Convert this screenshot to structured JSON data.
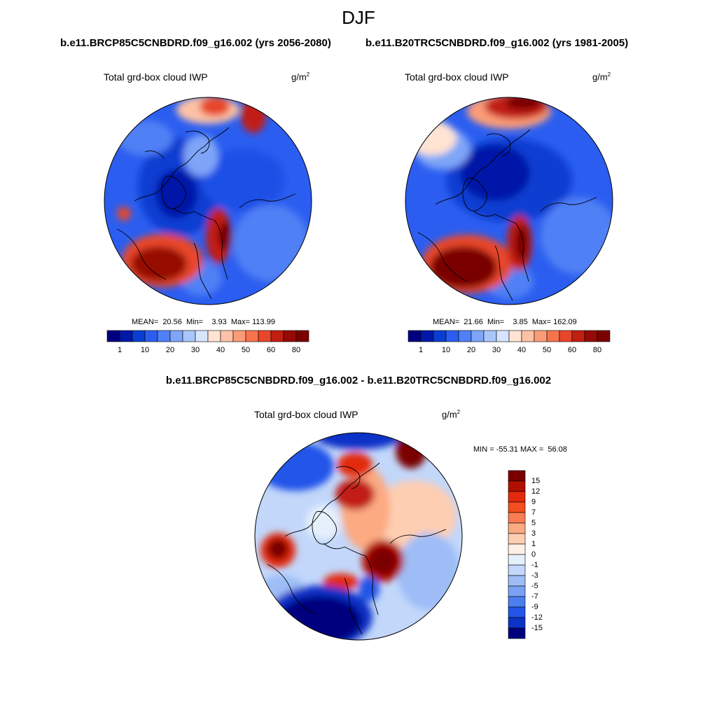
{
  "season": "DJF",
  "top_left": {
    "case": "b.e11.BRCP85C5CNBDRD.f09_g16.002 (yrs 2056-2080)",
    "variable": "Total grd-box cloud IWP",
    "units_base": "g/m",
    "units_exp": "2",
    "stats": "MEAN=  20.56  Min=    3.93  Max= 113.99"
  },
  "top_right": {
    "case": "b.e11.B20TRC5CNBDRD.f09_g16.002 (yrs 1981-2005)",
    "variable": "Total grd-box cloud IWP",
    "units_base": "g/m",
    "units_exp": "2",
    "stats": "MEAN=  21.66  Min=    3.85  Max= 162.09"
  },
  "bottom": {
    "case": "b.e11.BRCP85C5CNBDRD.f09_g16.002 - b.e11.B20TRC5CNBDRD.f09_g16.002",
    "variable": "Total grd-box cloud IWP",
    "units_base": "g/m",
    "units_exp": "2",
    "stats": "MIN = -55.31 MAX =  56.08"
  },
  "abs_colorbar": {
    "colors": [
      "#00007f",
      "#0019a8",
      "#0a3ed1",
      "#2b5ef0",
      "#4f80f5",
      "#7ea5f8",
      "#a9c6fb",
      "#d6e5fd",
      "#ffe3d3",
      "#fdc2a5",
      "#fb9c78",
      "#f7734c",
      "#e8462b",
      "#c11f12",
      "#960a06",
      "#7a0000"
    ],
    "labels": [
      "1",
      "10",
      "20",
      "30",
      "40",
      "50",
      "60",
      "80"
    ]
  },
  "diff_colorbar": {
    "colors": [
      "#7a0000",
      "#b30f00",
      "#e32a0d",
      "#f24e20",
      "#fa7d52",
      "#fcaa82",
      "#feceb2",
      "#fff0e6",
      "#e6f0fd",
      "#c2d7fa",
      "#9ebdf7",
      "#7aa2f4",
      "#4b7ff0",
      "#2255e8",
      "#0c33c8",
      "#00007f"
    ],
    "labels": [
      "15",
      "12",
      "9",
      "7",
      "5",
      "3",
      "1",
      "0",
      "-1",
      "-3",
      "-5",
      "-7",
      "-9",
      "-12",
      "-15"
    ]
  }
}
